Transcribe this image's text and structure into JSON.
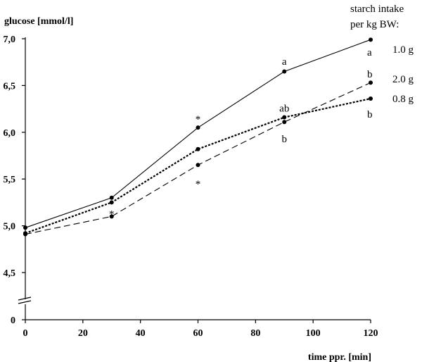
{
  "chart_data": {
    "type": "line",
    "ylabel": "glucose [mmol/l]",
    "xlabel": "time ppr. [min]",
    "legend_title_lines": [
      "starch intake",
      "per kg BW:"
    ],
    "x": [
      0,
      30,
      60,
      90,
      120
    ],
    "xticks": [
      "0",
      "20",
      "40",
      "60",
      "80",
      "100",
      "120"
    ],
    "xtick_values": [
      0,
      20,
      40,
      60,
      80,
      100,
      120
    ],
    "yticks": [
      "0",
      "4,5",
      "5,0",
      "5,5",
      "6,0",
      "6,5",
      "7,0"
    ],
    "ytick_values": [
      4.5,
      5.0,
      5.5,
      6.0,
      6.5,
      7.0
    ],
    "ylim": [
      4.5,
      7.0
    ],
    "xlim": [
      0,
      120
    ],
    "axis_break": true,
    "legend_placement": "right",
    "series": [
      {
        "name": "1.0 g",
        "style": "solid",
        "values": [
          4.98,
          5.3,
          6.05,
          6.65,
          6.99
        ],
        "end_letter": "a"
      },
      {
        "name": "2.0 g",
        "style": "dashed",
        "values": [
          4.91,
          5.1,
          5.65,
          6.11,
          6.53
        ],
        "end_letter": "b"
      },
      {
        "name": "0.8 g",
        "style": "dotted",
        "values": [
          4.92,
          5.25,
          5.82,
          6.16,
          6.36
        ],
        "end_letter": "b"
      }
    ],
    "annotations": [
      {
        "text": "*",
        "x": 30,
        "y": 5.13
      },
      {
        "text": "*",
        "x": 60,
        "y": 6.14
      },
      {
        "text": "*",
        "x": 60,
        "y": 5.45
      },
      {
        "text": "a",
        "x": 90,
        "y": 6.76
      },
      {
        "text": "ab",
        "x": 90,
        "y": 6.26
      },
      {
        "text": "b",
        "x": 90,
        "y": 5.93
      }
    ]
  }
}
